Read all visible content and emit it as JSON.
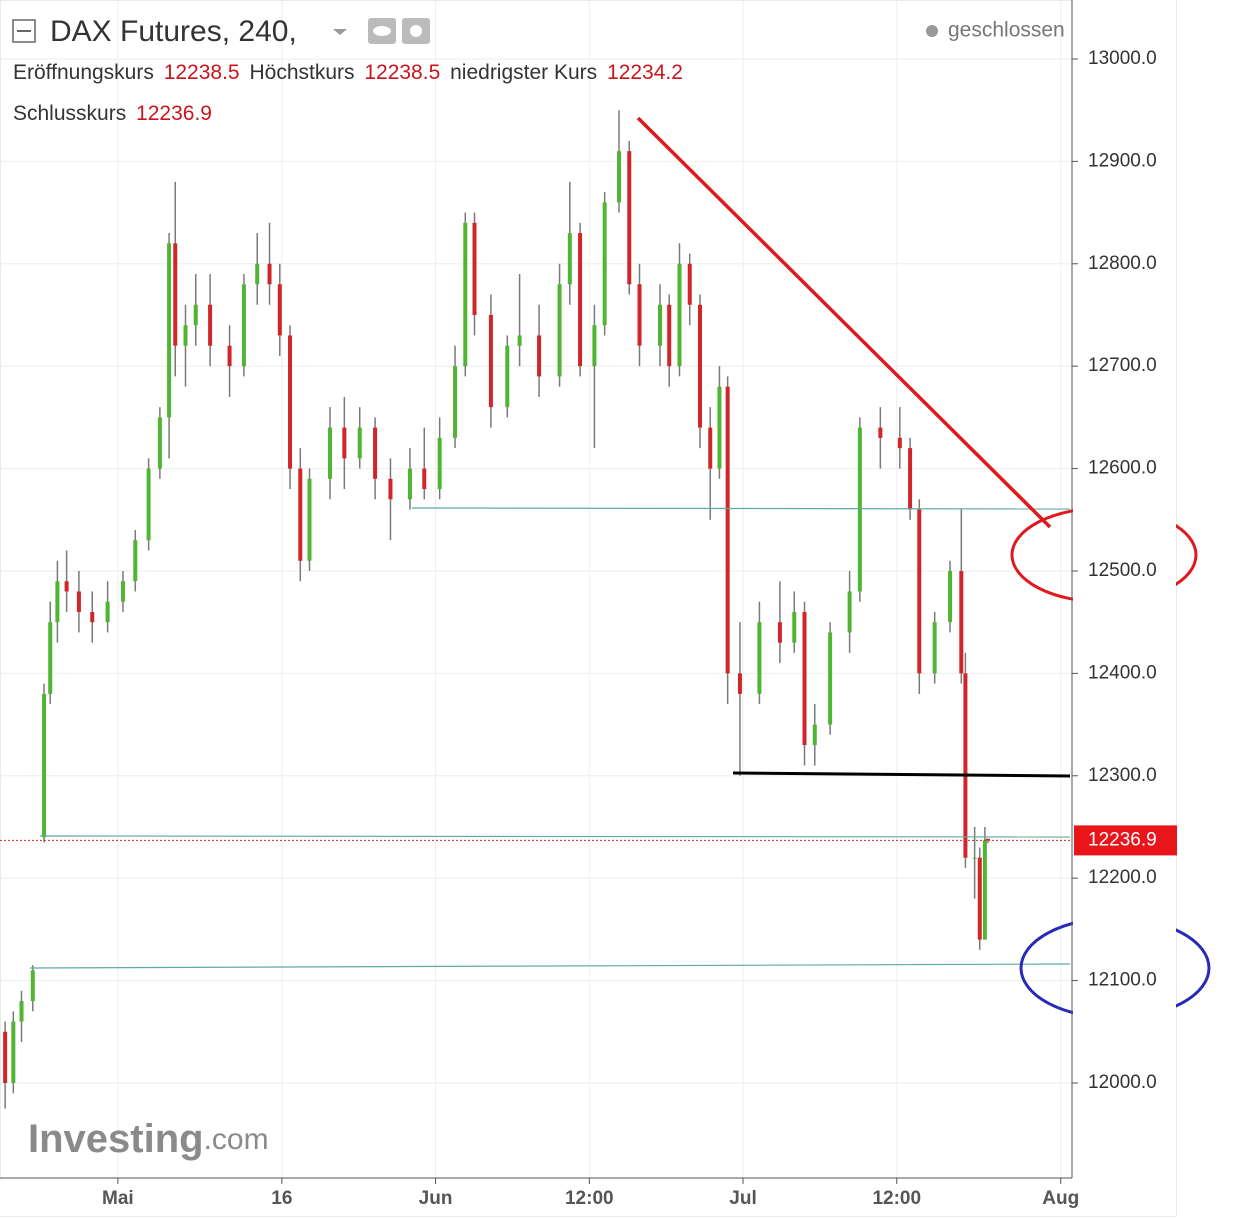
{
  "chart_data": {
    "type": "candlestick",
    "title": "DAX Futures, 240,",
    "status": "geschlossen",
    "ohlc_labels": {
      "open": "Eröffnungskurs",
      "high": "Höchstkurs",
      "low": "niedrigster Kurs",
      "close": "Schlusskurs"
    },
    "logo_main": "Investing",
    "logo_suffix": ".com",
    "up_color": "#4fb533",
    "down_color": "#d0262a",
    "wick_color": "#7a7a7a",
    "grid": true,
    "x": [
      -11.0,
      -10.2,
      -9.4,
      -8.3,
      -7.2,
      -6.6,
      -5.9,
      -5.0,
      -3.8,
      -2.5,
      -1.0,
      0.5,
      1.7,
      3.0,
      4.1,
      5.0,
      5.6,
      6.6,
      7.6,
      9.0,
      10.9,
      12.3,
      13.6,
      14.8,
      15.8,
      16.8,
      17.8,
      18.7,
      20.7,
      22.1,
      23.6,
      25.1,
      26.6,
      28.5,
      29.9,
      31.4,
      32.9,
      33.9,
      34.8,
      36.4,
      38.0,
      39.2,
      41.1,
      43.1,
      44.1,
      45.1,
      46.5,
      47.5,
      48.9,
      49.9,
      50.9,
      52.9,
      53.8,
      54.8,
      55.8,
      56.8,
      57.8,
      58.7,
      59.5,
      60.7,
      62.6,
      64.6,
      66.0,
      67.0,
      68.0,
      69.5,
      71.4,
      72.4,
      74.4,
      76.3,
      77.3,
      78.2,
      79.7,
      81.2,
      82.3,
      82.7,
      83.6,
      84.1,
      84.6,
      84.9
    ],
    "open": [
      12050,
      12000,
      12060,
      12080,
      12240,
      12380,
      12450,
      12490,
      12480,
      12460,
      12450,
      12470,
      12490,
      12530,
      12600,
      12650,
      12820,
      12720,
      12740,
      12760,
      12720,
      12700,
      12780,
      12800,
      12780,
      12730,
      12600,
      12510,
      12590,
      12640,
      12610,
      12640,
      12590,
      12570,
      12600,
      12580,
      12630,
      12700,
      12840,
      12750,
      12660,
      12720,
      12730,
      12690,
      12780,
      12830,
      12700,
      12740,
      12860,
      12910,
      12780,
      12720,
      12760,
      12700,
      12800,
      12760,
      12640,
      12600,
      12680,
      12400,
      12380,
      12450,
      12430,
      12460,
      12330,
      12350,
      12440,
      12480,
      12640,
      12630,
      12620,
      12560,
      12400,
      12450,
      12500,
      12400,
      12220,
      12220,
      12140,
      12238.5
    ],
    "high": [
      12060,
      12070,
      12090,
      12115,
      12390,
      12470,
      12510,
      12520,
      12500,
      12480,
      12490,
      12500,
      12540,
      12610,
      12660,
      12830,
      12880,
      12760,
      12790,
      12790,
      12740,
      12790,
      12830,
      12840,
      12800,
      12740,
      12620,
      12600,
      12660,
      12670,
      12660,
      12650,
      12610,
      12620,
      12640,
      12650,
      12720,
      12850,
      12850,
      12770,
      12730,
      12790,
      12760,
      12800,
      12880,
      12840,
      12760,
      12870,
      12950,
      12920,
      12800,
      12780,
      12770,
      12820,
      12810,
      12770,
      12660,
      12700,
      12690,
      12450,
      12470,
      12490,
      12480,
      12470,
      12370,
      12450,
      12500,
      12650,
      12660,
      12660,
      12630,
      12570,
      12460,
      12510,
      12560,
      12420,
      12250,
      12230,
      12250,
      12238.5
    ],
    "low": [
      11975,
      11990,
      12040,
      12070,
      12235,
      12370,
      12430,
      12460,
      12440,
      12430,
      12440,
      12460,
      12480,
      12520,
      12590,
      12610,
      12690,
      12680,
      12720,
      12700,
      12670,
      12690,
      12760,
      12760,
      12710,
      12580,
      12490,
      12500,
      12570,
      12580,
      12600,
      12570,
      12530,
      12560,
      12570,
      12570,
      12620,
      12690,
      12730,
      12640,
      12650,
      12700,
      12670,
      12680,
      12760,
      12690,
      12620,
      12730,
      12850,
      12770,
      12700,
      12700,
      12680,
      12690,
      12740,
      12620,
      12550,
      12590,
      12370,
      12300,
      12370,
      12410,
      12420,
      12310,
      12310,
      12340,
      12420,
      12470,
      12600,
      12600,
      12550,
      12380,
      12390,
      12440,
      12390,
      12210,
      12180,
      12130,
      12140,
      12234.2
    ],
    "close": [
      12000,
      12060,
      12080,
      12110,
      12380,
      12450,
      12490,
      12480,
      12460,
      12450,
      12470,
      12490,
      12530,
      12600,
      12650,
      12820,
      12720,
      12740,
      12760,
      12720,
      12700,
      12780,
      12800,
      12780,
      12730,
      12600,
      12510,
      12590,
      12640,
      12610,
      12640,
      12590,
      12570,
      12600,
      12580,
      12630,
      12700,
      12840,
      12750,
      12660,
      12720,
      12730,
      12690,
      12780,
      12830,
      12700,
      12740,
      12860,
      12910,
      12780,
      12720,
      12760,
      12700,
      12800,
      12760,
      12640,
      12600,
      12680,
      12400,
      12380,
      12450,
      12430,
      12460,
      12330,
      12350,
      12440,
      12480,
      12640,
      12630,
      12620,
      12560,
      12400,
      12450,
      12500,
      12400,
      12220,
      12220,
      12140,
      12237,
      12236.9
    ],
    "xlim": [
      -11.5,
      93.1
    ],
    "ylim": [
      11907.2,
      13057.6
    ],
    "xticks": [
      {
        "value": 0,
        "label": "Mai"
      },
      16,
      {
        "value": 31,
        "label": "Jun"
      },
      {
        "value": 46,
        "label": "12:00"
      },
      {
        "value": 61,
        "label": "Jul"
      },
      {
        "value": 76,
        "label": "12:00"
      },
      {
        "value": 92,
        "label": "Aug"
      }
    ],
    "yticks": [
      {
        "value": 12000,
        "label": "12000.0"
      },
      {
        "value": 12100,
        "label": "12100.0"
      },
      {
        "value": 12200,
        "label": "12200.0"
      },
      {
        "value": 12300,
        "label": "12300.0"
      },
      {
        "value": 12400,
        "label": "12400.0"
      },
      {
        "value": 12500,
        "label": "12500.0"
      },
      {
        "value": 12600,
        "label": "12600.0"
      },
      {
        "value": 12700,
        "label": "12700.0"
      },
      {
        "value": 12800,
        "label": "12800.0"
      },
      {
        "value": 12900,
        "label": "12900.0"
      },
      {
        "value": 13000,
        "label": "13000.0"
      }
    ]
  }
}
